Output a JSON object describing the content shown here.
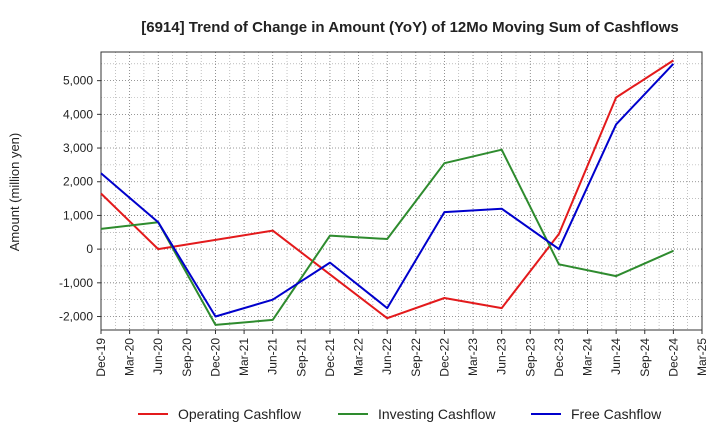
{
  "chart_data": {
    "type": "line",
    "title": "[6914]  Trend of Change in Amount (YoY) of 12Mo Moving Sum of Cashflows",
    "xlabel": "",
    "ylabel": "Amount (million yen)",
    "ylim": [
      -2400,
      5850
    ],
    "yticks": [
      -2000,
      -1000,
      0,
      1000,
      2000,
      3000,
      4000,
      5000
    ],
    "ytick_labels": [
      "-2,000",
      "-1,000",
      "0",
      "1,000",
      "2,000",
      "3,000",
      "4,000",
      "5,000"
    ],
    "categories": [
      "Dec-19",
      "Mar-20",
      "Jun-20",
      "Sep-20",
      "Dec-20",
      "Mar-21",
      "Jun-21",
      "Sep-21",
      "Dec-21",
      "Mar-22",
      "Jun-22",
      "Sep-22",
      "Dec-22",
      "Mar-23",
      "Jun-23",
      "Sep-23",
      "Dec-23",
      "Mar-24",
      "Jun-24",
      "Sep-24",
      "Dec-24",
      "Mar-25"
    ],
    "grid": true,
    "legend_position": "bottom",
    "series": [
      {
        "name": "Operating Cashflow",
        "color": "#e31a1c",
        "values": [
          1650,
          null,
          0,
          null,
          null,
          null,
          550,
          null,
          -750,
          null,
          -2050,
          null,
          -1450,
          null,
          -1750,
          null,
          450,
          null,
          4500,
          null,
          5600,
          null
        ]
      },
      {
        "name": "Investing Cashflow",
        "color": "#2e8b2e",
        "values": [
          600,
          null,
          800,
          null,
          -2250,
          null,
          -2100,
          null,
          400,
          null,
          300,
          null,
          2550,
          null,
          2950,
          null,
          -450,
          null,
          -800,
          null,
          -50,
          null
        ]
      },
      {
        "name": "Free Cashflow",
        "color": "#0000cc",
        "values": [
          2250,
          null,
          800,
          null,
          -2000,
          null,
          -1500,
          null,
          -400,
          null,
          -1750,
          null,
          1100,
          null,
          1200,
          null,
          0,
          null,
          3700,
          null,
          5500,
          null
        ]
      }
    ]
  }
}
